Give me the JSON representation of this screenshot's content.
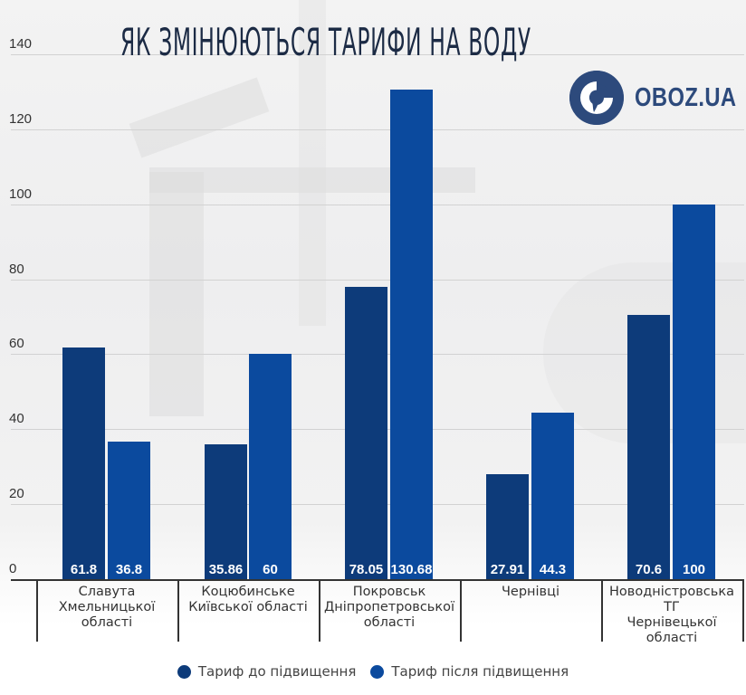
{
  "header": {
    "title": "ЯК ЗМІНЮЮТЬСЯ ТАРИФИ НА ВОДУ",
    "logo_text": "OBOZ.UA",
    "logo_icon": "globe-icon"
  },
  "colors": {
    "before": "#0d3b7a",
    "after": "#0b4a9e",
    "title": "#1c2b45",
    "logo": "#2d4a7c"
  },
  "y_axis": {
    "ticks": [
      "0",
      "20",
      "40",
      "60",
      "80",
      "100",
      "120",
      "140"
    ]
  },
  "categories": [
    {
      "lines": [
        "Славута",
        "Хмельницької",
        "області"
      ]
    },
    {
      "lines": [
        "Коцюбинське",
        "Київської області"
      ]
    },
    {
      "lines": [
        "Покровськ",
        "Дніпропетровської",
        "області"
      ]
    },
    {
      "lines": [
        "Чернівці"
      ]
    },
    {
      "lines": [
        "Новодністровська ТГ",
        "Чернівецької",
        "області"
      ]
    }
  ],
  "bars": {
    "before": [
      "61.8",
      "35.86",
      "78.05",
      "27.91",
      "70.6"
    ],
    "after": [
      "36.8",
      "60",
      "130.68",
      "44.3",
      "100"
    ]
  },
  "legend": {
    "before": "Тариф до підвищення",
    "after": "Тариф після підвищення"
  },
  "chart_data": {
    "type": "bar",
    "title": "Як змінюються тарифи на воду",
    "xlabel": "",
    "ylabel": "",
    "ylim": [
      0,
      140
    ],
    "yticks": [
      0,
      20,
      40,
      60,
      80,
      100,
      120,
      140
    ],
    "grid": true,
    "legend_position": "bottom",
    "categories": [
      "Славута Хмельницької області",
      "Коцюбинське Київської області",
      "Покровськ Дніпропетровської області",
      "Чернівці",
      "Новодністровська ТГ Чернівецької області"
    ],
    "series": [
      {
        "name": "Тариф до підвищення",
        "color": "#0d3b7a",
        "values": [
          61.8,
          35.86,
          78.05,
          27.91,
          70.6
        ]
      },
      {
        "name": "Тариф після підвищення",
        "color": "#0b4a9e",
        "values": [
          36.8,
          60,
          130.68,
          44.3,
          100
        ]
      }
    ],
    "data_labels": true
  }
}
